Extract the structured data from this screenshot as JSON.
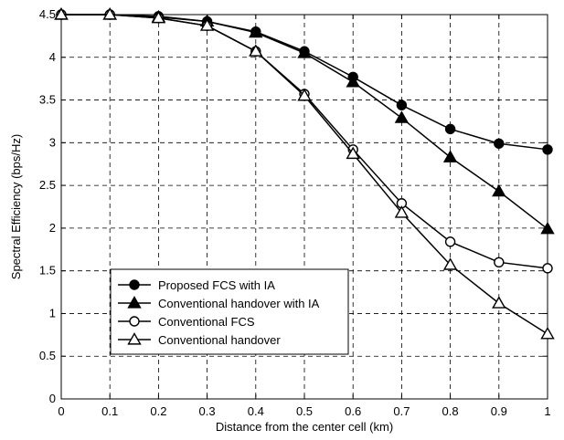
{
  "chart_data": {
    "type": "line",
    "xlabel": "Distance from the center cell (km)",
    "ylabel": "Spectral Efficiency (bps/Hz)",
    "xlim": [
      0,
      1
    ],
    "ylim": [
      0,
      4.5
    ],
    "grid": true,
    "legend_position": "bottom-left",
    "x_ticks": [
      "0",
      "0.1",
      "0.2",
      "0.3",
      "0.4",
      "0.5",
      "0.6",
      "0.7",
      "0.8",
      "0.9",
      "1"
    ],
    "y_ticks": [
      "0",
      "0.5",
      "1",
      "1.5",
      "2",
      "2.5",
      "3",
      "3.5",
      "4",
      "4.5"
    ],
    "x": [
      0,
      0.1,
      0.2,
      0.3,
      0.4,
      0.5,
      0.6,
      0.7,
      0.8,
      0.9,
      1.0
    ],
    "series": [
      {
        "name": "Proposed FCS with IA",
        "marker": "filled-circle",
        "values": [
          4.5,
          4.5,
          4.48,
          4.42,
          4.3,
          4.07,
          3.77,
          3.44,
          3.16,
          2.99,
          2.92
        ]
      },
      {
        "name": "Conventional handover with IA",
        "marker": "filled-triangle",
        "values": [
          4.5,
          4.5,
          4.47,
          4.42,
          4.29,
          4.05,
          3.71,
          3.29,
          2.83,
          2.43,
          1.99
        ]
      },
      {
        "name": "Conventional FCS",
        "marker": "open-circle",
        "values": [
          4.5,
          4.5,
          4.46,
          4.37,
          4.07,
          3.57,
          2.92,
          2.29,
          1.84,
          1.6,
          1.53
        ]
      },
      {
        "name": "Conventional handover",
        "marker": "open-triangle",
        "values": [
          4.5,
          4.5,
          4.46,
          4.37,
          4.07,
          3.55,
          2.87,
          2.18,
          1.57,
          1.12,
          0.76
        ]
      }
    ]
  }
}
